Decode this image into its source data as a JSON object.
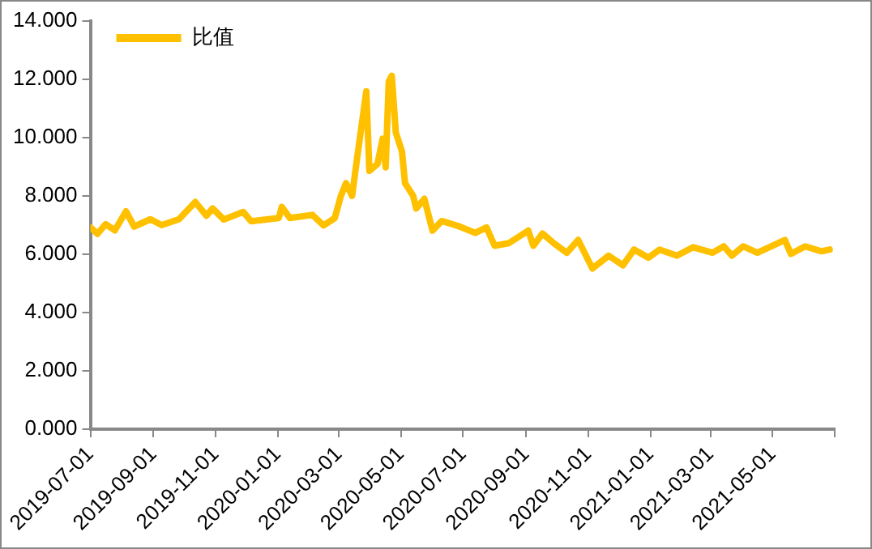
{
  "chart_data": {
    "type": "line",
    "legend": "top left",
    "grid": false,
    "marker": "none",
    "line_style": "solid",
    "xlim": [
      "2019-07-01",
      "2021-07-01"
    ],
    "xticks": [
      {
        "value": "2019-07-01",
        "label": "2019-07-01"
      },
      {
        "value": "2019-09-01",
        "label": "2019-09-01"
      },
      {
        "value": "2019-11-01",
        "label": "2019-11-01"
      },
      {
        "value": "2020-01-01",
        "label": "2020-01-01"
      },
      {
        "value": "2020-03-01",
        "label": "2020-03-01"
      },
      {
        "value": "2020-05-01",
        "label": "2020-05-01"
      },
      {
        "value": "2020-07-01",
        "label": "2020-07-01"
      },
      {
        "value": "2020-09-01",
        "label": "2020-09-01"
      },
      {
        "value": "2020-11-01",
        "label": "2020-11-01"
      },
      {
        "value": "2021-01-01",
        "label": "2021-01-01"
      },
      {
        "value": "2021-03-01",
        "label": "2021-03-01"
      },
      {
        "value": "2021-05-01",
        "label": "2021-05-01"
      },
      {
        "value": "2021-07-01",
        "label": null
      }
    ],
    "ylim": [
      0,
      14
    ],
    "yticks": [
      {
        "value": 0,
        "label": "0.000"
      },
      {
        "value": 2,
        "label": "2.000"
      },
      {
        "value": 4,
        "label": "4.000"
      },
      {
        "value": 6,
        "label": "6.000"
      },
      {
        "value": 8,
        "label": "8.000"
      },
      {
        "value": 10,
        "label": "10.000"
      },
      {
        "value": 12,
        "label": "12.000"
      },
      {
        "value": 14,
        "label": "14.000"
      }
    ],
    "series": [
      {
        "name": "比值",
        "color": "#ffc000",
        "x": [
          "2019-07-01",
          "2019-07-08",
          "2019-07-16",
          "2019-07-25",
          "2019-08-05",
          "2019-08-13",
          "2019-08-29",
          "2019-09-09",
          "2019-09-26",
          "2019-10-12",
          "2019-10-23",
          "2019-10-29",
          "2019-11-09",
          "2019-11-28",
          "2019-12-06",
          "2020-01-02",
          "2020-01-05",
          "2020-01-13",
          "2020-02-04",
          "2020-02-15",
          "2020-02-26",
          "2020-03-03",
          "2020-03-08",
          "2020-03-14",
          "2020-03-19",
          "2020-03-25",
          "2020-03-28",
          "2020-03-31",
          "2020-04-08",
          "2020-04-13",
          "2020-04-16",
          "2020-04-19",
          "2020-04-22",
          "2020-04-26",
          "2020-05-02",
          "2020-05-05",
          "2020-05-13",
          "2020-05-16",
          "2020-05-24",
          "2020-06-01",
          "2020-06-10",
          "2020-06-26",
          "2020-07-13",
          "2020-07-24",
          "2020-08-01",
          "2020-08-15",
          "2020-09-03",
          "2020-09-08",
          "2020-09-17",
          "2020-09-28",
          "2020-10-11",
          "2020-10-22",
          "2020-11-05",
          "2020-11-21",
          "2020-12-05",
          "2020-12-16",
          "2020-12-30",
          "2021-01-10",
          "2021-01-27",
          "2021-02-12",
          "2021-03-03",
          "2021-03-14",
          "2021-03-22",
          "2021-04-02",
          "2021-04-16",
          "2021-05-02",
          "2021-05-13",
          "2021-05-19",
          "2021-06-02",
          "2021-06-18",
          "2021-06-26"
        ],
        "values": [
          6.92,
          6.7,
          7.03,
          6.82,
          7.47,
          6.95,
          7.2,
          7.0,
          7.2,
          7.79,
          7.32,
          7.57,
          7.19,
          7.45,
          7.13,
          7.24,
          7.62,
          7.24,
          7.35,
          6.99,
          7.24,
          8.0,
          8.44,
          8.0,
          9.31,
          10.83,
          11.59,
          8.86,
          9.1,
          9.96,
          8.98,
          11.92,
          12.12,
          10.17,
          9.53,
          8.44,
          8.0,
          7.57,
          7.9,
          6.81,
          7.14,
          6.97,
          6.73,
          6.92,
          6.29,
          6.38,
          6.81,
          6.29,
          6.71,
          6.38,
          6.05,
          6.49,
          5.51,
          5.95,
          5.62,
          6.16,
          5.88,
          6.16,
          5.95,
          6.24,
          6.05,
          6.27,
          5.95,
          6.27,
          6.05,
          6.31,
          6.49,
          6.01,
          6.27,
          6.1,
          6.16
        ]
      }
    ]
  }
}
